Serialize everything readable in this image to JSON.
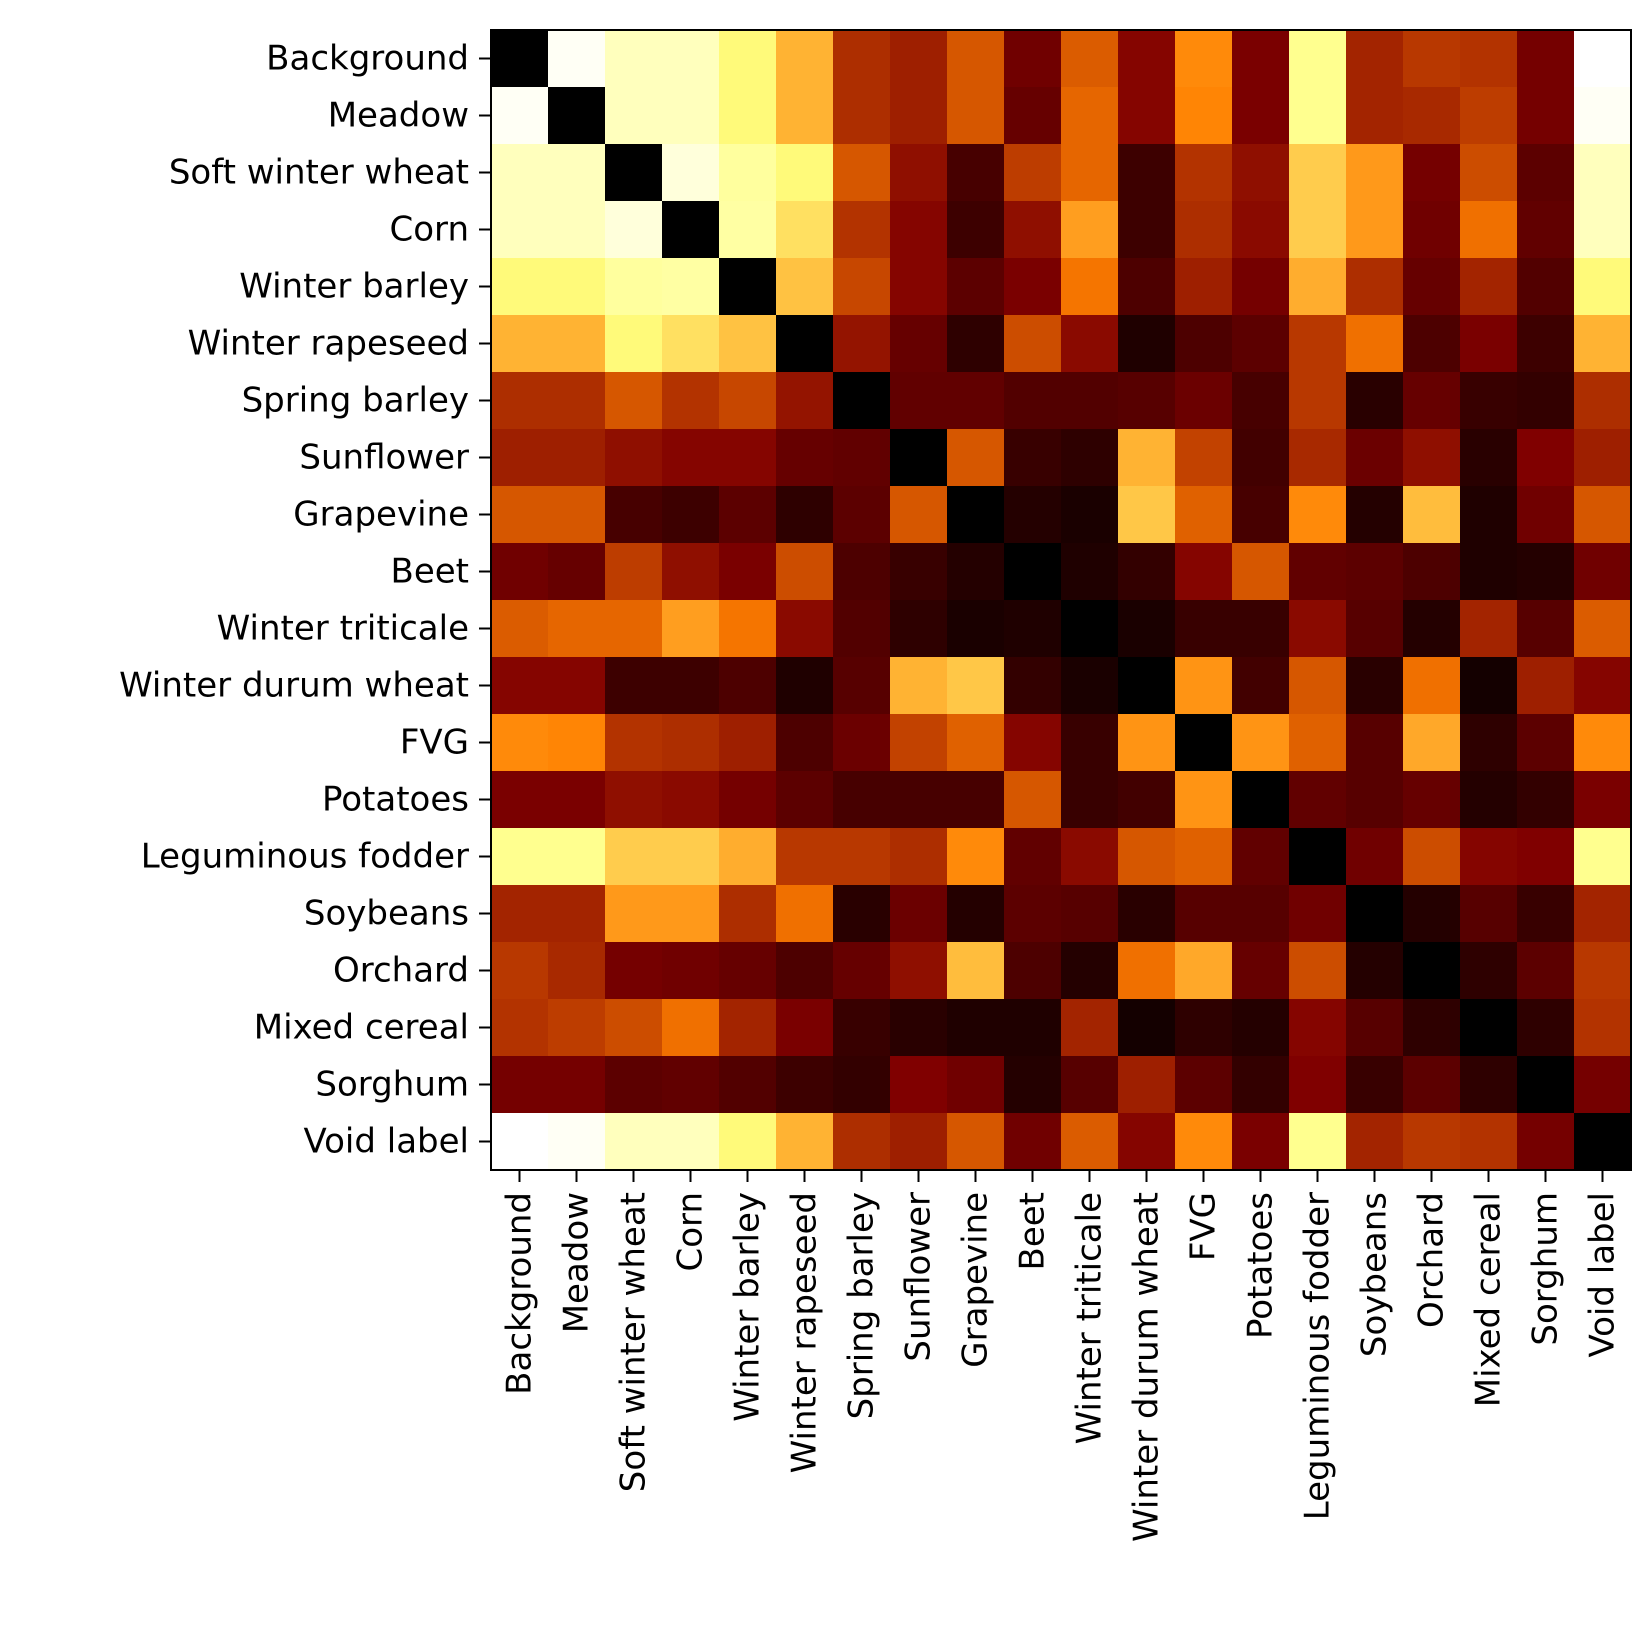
{
  "chart_data": {
    "type": "heatmap",
    "title": "",
    "xlabel": "",
    "ylabel": "",
    "colormap": "afmhot",
    "value_range": [
      0,
      1
    ],
    "grid": false,
    "legend": "none",
    "categories": [
      "Background",
      "Meadow",
      "Soft winter wheat",
      "Corn",
      "Winter barley",
      "Winter rapeseed",
      "Spring barley",
      "Sunflower",
      "Grapevine",
      "Beet",
      "Winter triticale",
      "Winter durum wheat",
      "FVG",
      "Potatoes",
      "Leguminous fodder",
      "Soybeans",
      "Orchard",
      "Mixed cereal",
      "Sorghum",
      "Void label"
    ],
    "x": [
      "Background",
      "Meadow",
      "Soft winter wheat",
      "Corn",
      "Winter barley",
      "Winter rapeseed",
      "Spring barley",
      "Sunflower",
      "Grapevine",
      "Beet",
      "Winter triticale",
      "Winter durum wheat",
      "FVG",
      "Potatoes",
      "Leguminous fodder",
      "Soybeans",
      "Orchard",
      "Mixed cereal",
      "Sorghum",
      "Void label"
    ],
    "y": [
      "Background",
      "Meadow",
      "Soft winter wheat",
      "Corn",
      "Winter barley",
      "Winter rapeseed",
      "Spring barley",
      "Sunflower",
      "Grapevine",
      "Beet",
      "Winter triticale",
      "Winter durum wheat",
      "FVG",
      "Potatoes",
      "Leguminous fodder",
      "Soybeans",
      "Orchard",
      "Mixed cereal",
      "Sorghum",
      "Void label"
    ],
    "values": [
      [
        0.0,
        0.98,
        0.87,
        0.87,
        0.74,
        0.6,
        0.34,
        0.31,
        0.42,
        0.22,
        0.43,
        0.26,
        0.52,
        0.24,
        0.78,
        0.32,
        0.36,
        0.35,
        0.23,
        1.0
      ],
      [
        0.98,
        0.0,
        0.87,
        0.87,
        0.74,
        0.6,
        0.34,
        0.31,
        0.42,
        0.2,
        0.45,
        0.26,
        0.51,
        0.24,
        0.78,
        0.32,
        0.33,
        0.37,
        0.23,
        0.98
      ],
      [
        0.87,
        0.87,
        0.0,
        0.93,
        0.81,
        0.74,
        0.42,
        0.28,
        0.14,
        0.37,
        0.45,
        0.12,
        0.35,
        0.28,
        0.65,
        0.55,
        0.23,
        0.4,
        0.18,
        0.87
      ],
      [
        0.87,
        0.87,
        0.93,
        0.0,
        0.82,
        0.69,
        0.35,
        0.26,
        0.12,
        0.28,
        0.56,
        0.12,
        0.34,
        0.27,
        0.65,
        0.55,
        0.22,
        0.47,
        0.19,
        0.87
      ],
      [
        0.74,
        0.74,
        0.81,
        0.82,
        0.0,
        0.63,
        0.39,
        0.26,
        0.18,
        0.24,
        0.48,
        0.15,
        0.31,
        0.23,
        0.59,
        0.34,
        0.2,
        0.32,
        0.16,
        0.74
      ],
      [
        0.6,
        0.6,
        0.74,
        0.69,
        0.63,
        0.0,
        0.29,
        0.2,
        0.09,
        0.4,
        0.27,
        0.06,
        0.15,
        0.18,
        0.36,
        0.47,
        0.15,
        0.24,
        0.12,
        0.6
      ],
      [
        0.34,
        0.34,
        0.42,
        0.35,
        0.39,
        0.29,
        0.0,
        0.19,
        0.19,
        0.16,
        0.16,
        0.17,
        0.21,
        0.14,
        0.36,
        0.08,
        0.2,
        0.11,
        0.1,
        0.34
      ],
      [
        0.31,
        0.31,
        0.28,
        0.26,
        0.26,
        0.2,
        0.19,
        0.0,
        0.42,
        0.11,
        0.09,
        0.6,
        0.38,
        0.13,
        0.33,
        0.21,
        0.28,
        0.08,
        0.25,
        0.31
      ],
      [
        0.42,
        0.42,
        0.14,
        0.12,
        0.18,
        0.09,
        0.18,
        0.42,
        0.0,
        0.07,
        0.05,
        0.64,
        0.44,
        0.14,
        0.52,
        0.07,
        0.62,
        0.06,
        0.22,
        0.42
      ],
      [
        0.22,
        0.2,
        0.37,
        0.28,
        0.24,
        0.4,
        0.15,
        0.11,
        0.07,
        0.0,
        0.06,
        0.1,
        0.26,
        0.42,
        0.19,
        0.18,
        0.15,
        0.06,
        0.07,
        0.22
      ],
      [
        0.43,
        0.45,
        0.45,
        0.56,
        0.48,
        0.27,
        0.16,
        0.09,
        0.05,
        0.06,
        0.0,
        0.05,
        0.11,
        0.11,
        0.27,
        0.17,
        0.07,
        0.32,
        0.17,
        0.43
      ],
      [
        0.26,
        0.26,
        0.12,
        0.12,
        0.15,
        0.06,
        0.17,
        0.6,
        0.64,
        0.1,
        0.05,
        0.0,
        0.54,
        0.13,
        0.42,
        0.08,
        0.47,
        0.04,
        0.31,
        0.26
      ],
      [
        0.52,
        0.51,
        0.35,
        0.34,
        0.31,
        0.15,
        0.21,
        0.38,
        0.44,
        0.26,
        0.11,
        0.54,
        0.0,
        0.54,
        0.44,
        0.17,
        0.58,
        0.09,
        0.18,
        0.52
      ],
      [
        0.24,
        0.24,
        0.28,
        0.27,
        0.23,
        0.18,
        0.14,
        0.14,
        0.14,
        0.42,
        0.11,
        0.13,
        0.54,
        0.0,
        0.19,
        0.17,
        0.2,
        0.07,
        0.1,
        0.24
      ],
      [
        0.78,
        0.78,
        0.65,
        0.65,
        0.59,
        0.36,
        0.36,
        0.34,
        0.52,
        0.19,
        0.27,
        0.42,
        0.44,
        0.19,
        0.0,
        0.22,
        0.4,
        0.26,
        0.25,
        0.78
      ],
      [
        0.32,
        0.32,
        0.55,
        0.55,
        0.34,
        0.47,
        0.08,
        0.21,
        0.07,
        0.18,
        0.17,
        0.08,
        0.17,
        0.17,
        0.22,
        0.0,
        0.07,
        0.17,
        0.11,
        0.32
      ],
      [
        0.36,
        0.33,
        0.23,
        0.22,
        0.2,
        0.15,
        0.2,
        0.28,
        0.62,
        0.15,
        0.07,
        0.47,
        0.58,
        0.2,
        0.4,
        0.07,
        0.0,
        0.09,
        0.18,
        0.36
      ],
      [
        0.35,
        0.37,
        0.4,
        0.47,
        0.32,
        0.24,
        0.11,
        0.08,
        0.06,
        0.06,
        0.32,
        0.04,
        0.09,
        0.07,
        0.26,
        0.17,
        0.09,
        0.0,
        0.09,
        0.35
      ],
      [
        0.23,
        0.23,
        0.18,
        0.19,
        0.16,
        0.12,
        0.1,
        0.25,
        0.22,
        0.07,
        0.17,
        0.31,
        0.18,
        0.1,
        0.25,
        0.11,
        0.18,
        0.09,
        0.0,
        0.23
      ],
      [
        1.0,
        0.98,
        0.87,
        0.87,
        0.74,
        0.6,
        0.34,
        0.31,
        0.42,
        0.22,
        0.43,
        0.26,
        0.52,
        0.24,
        0.78,
        0.32,
        0.36,
        0.35,
        0.23,
        0.0
      ]
    ]
  }
}
